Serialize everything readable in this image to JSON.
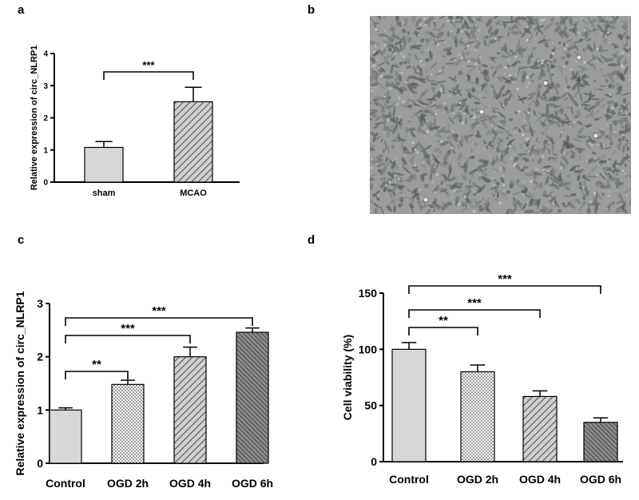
{
  "panels": {
    "a": "a",
    "b": "b",
    "c": "c",
    "d": "d"
  },
  "colors": {
    "axis": "#000000",
    "bar_fill_light": "#d7d7d7",
    "bar_fill_dark": "#8c8c8c",
    "micro_bg": "#9a9d9b"
  },
  "micrograph": {
    "icon": "cell-culture-micrograph"
  },
  "chart_data": [
    {
      "panel": "a",
      "type": "bar",
      "categories": [
        "sham",
        "MCAO"
      ],
      "values": [
        1.08,
        2.5
      ],
      "errors": [
        0.18,
        0.45
      ],
      "patterns": [
        "solid",
        "hatch"
      ],
      "ylabel": "Relative expression of circ_NLRP1",
      "xlabel": "",
      "ylim": [
        0,
        4
      ],
      "yticks": [
        "0",
        "1",
        "2",
        "3",
        "4"
      ],
      "significance": [
        {
          "from": 0,
          "to": 1,
          "label": "***"
        }
      ]
    },
    {
      "panel": "c",
      "type": "bar",
      "categories": [
        "Control",
        "OGD 2h",
        "OGD 4h",
        "OGD 6h"
      ],
      "values": [
        1.0,
        1.48,
        2.0,
        2.46
      ],
      "errors": [
        0.04,
        0.08,
        0.18,
        0.08
      ],
      "patterns": [
        "solid",
        "dots",
        "hatch",
        "dense-hatch"
      ],
      "ylabel": "Relative expression of circ_NLRP1",
      "xlabel": "",
      "ylim": [
        0,
        3
      ],
      "yticks": [
        "0",
        "1",
        "2",
        "3"
      ],
      "significance": [
        {
          "from": 0,
          "to": 1,
          "label": "**"
        },
        {
          "from": 0,
          "to": 2,
          "label": "***"
        },
        {
          "from": 0,
          "to": 3,
          "label": "***"
        }
      ]
    },
    {
      "panel": "d",
      "type": "bar",
      "categories": [
        "Control",
        "OGD 2h",
        "OGD 4h",
        "OGD 6h"
      ],
      "values": [
        100,
        80,
        58,
        35
      ],
      "errors": [
        6,
        6,
        5,
        4
      ],
      "patterns": [
        "solid",
        "dots",
        "hatch",
        "dense-hatch"
      ],
      "ylabel": "Cell viability (%)",
      "xlabel": "",
      "ylim": [
        0,
        150
      ],
      "yticks": [
        "0",
        "50",
        "100",
        "150"
      ],
      "significance": [
        {
          "from": 0,
          "to": 1,
          "label": "**"
        },
        {
          "from": 0,
          "to": 2,
          "label": "***"
        },
        {
          "from": 0,
          "to": 3,
          "label": "***"
        }
      ]
    }
  ]
}
